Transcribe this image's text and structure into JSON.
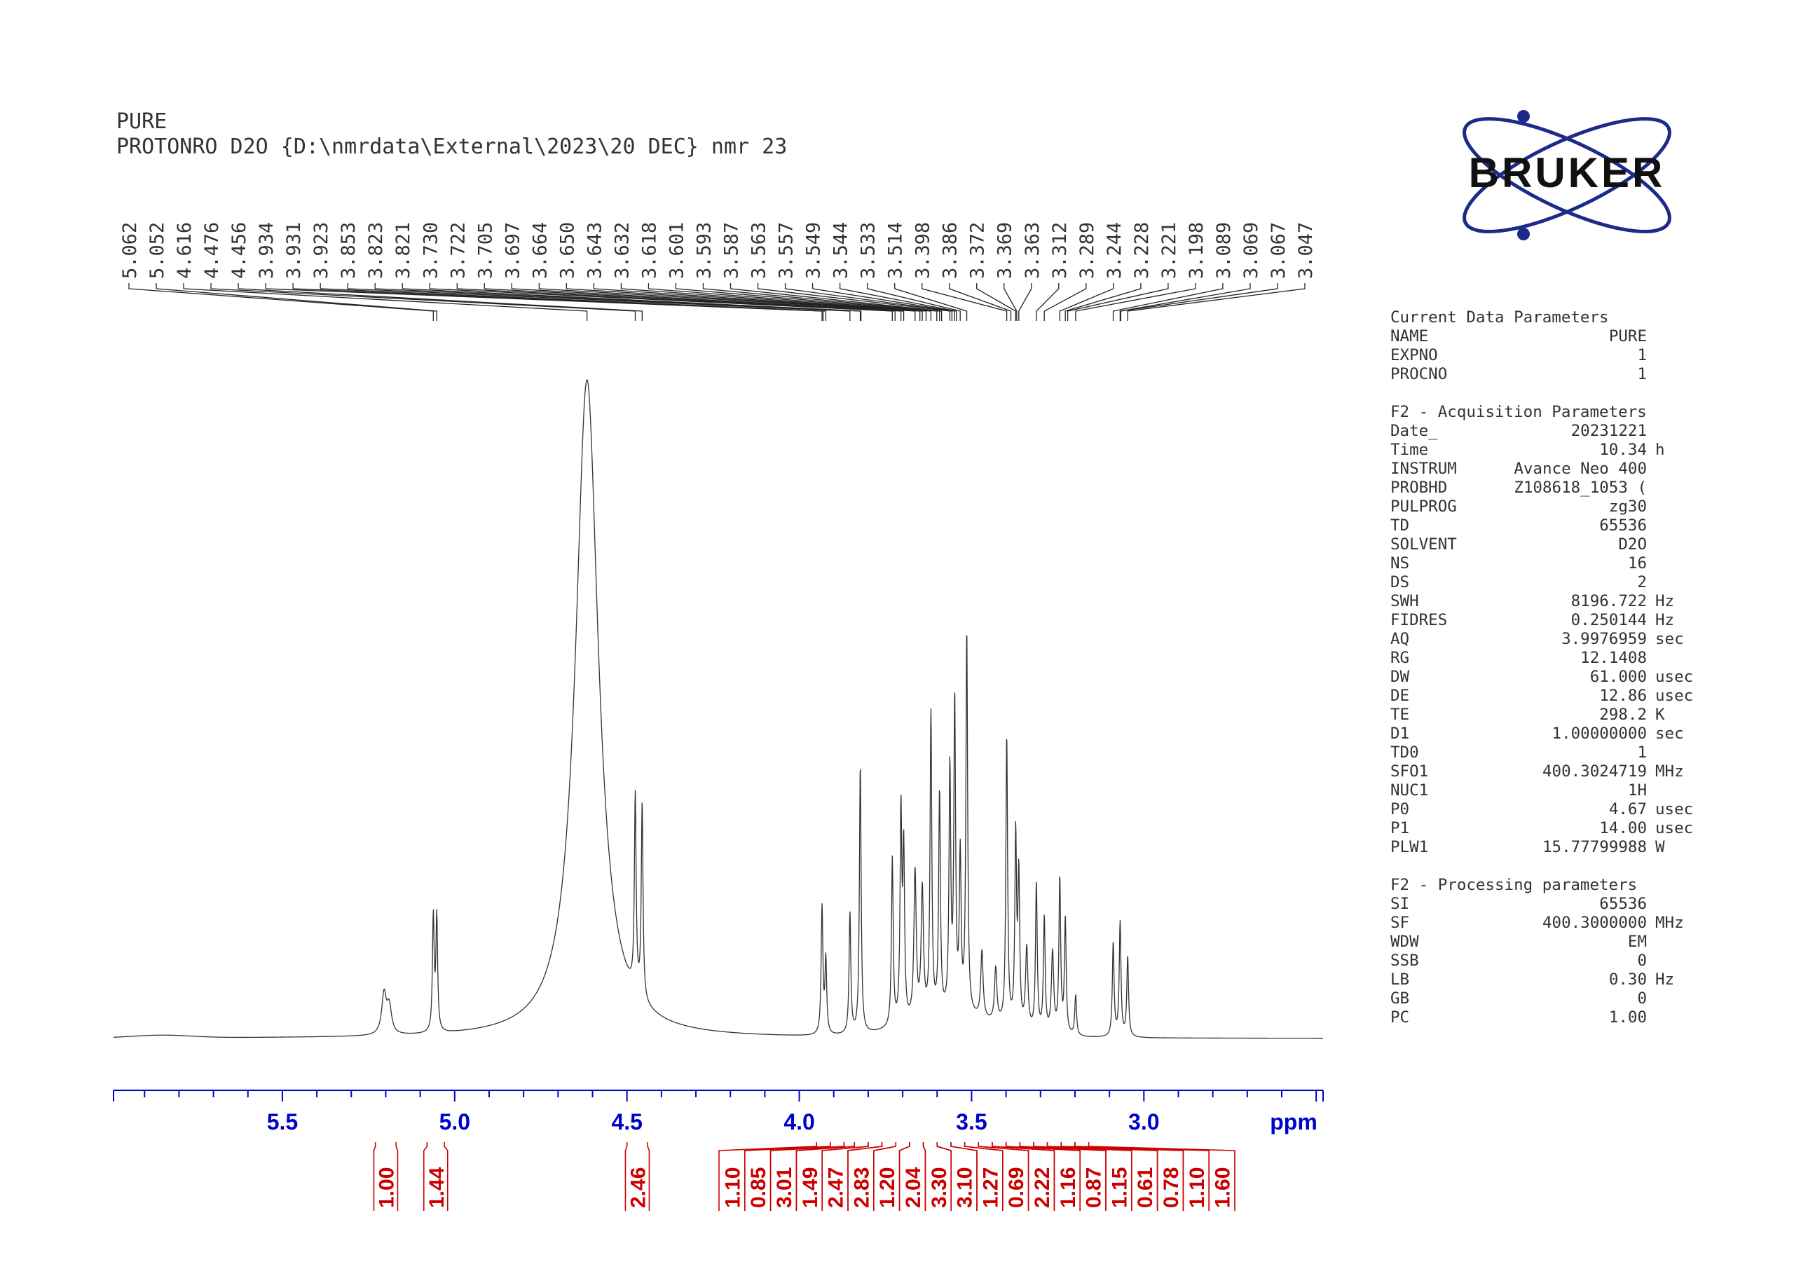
{
  "header": {
    "line1": "PURE",
    "line2": "PROTONRO D2O {D:\\nmrdata\\External\\2023\\20 DEC} nmr 23"
  },
  "logo": {
    "text": "BRUKER",
    "color": "#1c2a8a",
    "icon": "bruker-orbit-logo"
  },
  "colors": {
    "axis": "#0000cc",
    "integral": "#cc0000",
    "trace": "#333333"
  },
  "parameters": {
    "current": {
      "title": "Current Data Parameters",
      "rows": [
        {
          "name": "NAME",
          "value": "PURE",
          "unit": ""
        },
        {
          "name": "EXPNO",
          "value": "1",
          "unit": ""
        },
        {
          "name": "PROCNO",
          "value": "1",
          "unit": ""
        }
      ]
    },
    "acquisition": {
      "title": "F2 - Acquisition Parameters",
      "rows": [
        {
          "name": "Date_",
          "value": "20231221",
          "unit": ""
        },
        {
          "name": "Time",
          "value": "10.34",
          "unit": "h"
        },
        {
          "name": "INSTRUM",
          "value": "Avance Neo 400",
          "unit": ""
        },
        {
          "name": "PROBHD",
          "value": "Z108618_1053 (",
          "unit": ""
        },
        {
          "name": "PULPROG",
          "value": "zg30",
          "unit": ""
        },
        {
          "name": "TD",
          "value": "65536",
          "unit": ""
        },
        {
          "name": "SOLVENT",
          "value": "D2O",
          "unit": ""
        },
        {
          "name": "NS",
          "value": "16",
          "unit": ""
        },
        {
          "name": "DS",
          "value": "2",
          "unit": ""
        },
        {
          "name": "SWH",
          "value": "8196.722",
          "unit": "Hz"
        },
        {
          "name": "FIDRES",
          "value": "0.250144",
          "unit": "Hz"
        },
        {
          "name": "AQ",
          "value": "3.9976959",
          "unit": "sec"
        },
        {
          "name": "RG",
          "value": "12.1408",
          "unit": ""
        },
        {
          "name": "DW",
          "value": "61.000",
          "unit": "usec"
        },
        {
          "name": "DE",
          "value": "12.86",
          "unit": "usec"
        },
        {
          "name": "TE",
          "value": "298.2",
          "unit": "K"
        },
        {
          "name": "D1",
          "value": "1.00000000",
          "unit": "sec"
        },
        {
          "name": "TD0",
          "value": "1",
          "unit": ""
        },
        {
          "name": "SFO1",
          "value": "400.3024719",
          "unit": "MHz"
        },
        {
          "name": "NUC1",
          "value": "1H",
          "unit": ""
        },
        {
          "name": "P0",
          "value": "4.67",
          "unit": "usec"
        },
        {
          "name": "P1",
          "value": "14.00",
          "unit": "usec"
        },
        {
          "name": "PLW1",
          "value": "15.77799988",
          "unit": "W"
        }
      ]
    },
    "processing": {
      "title": "F2 - Processing parameters",
      "rows": [
        {
          "name": "SI",
          "value": "65536",
          "unit": ""
        },
        {
          "name": "SF",
          "value": "400.3000000",
          "unit": "MHz"
        },
        {
          "name": "WDW",
          "value": "EM",
          "unit": ""
        },
        {
          "name": "SSB",
          "value": "0",
          "unit": ""
        },
        {
          "name": "LB",
          "value": "0.30",
          "unit": "Hz"
        },
        {
          "name": "GB",
          "value": "0",
          "unit": ""
        },
        {
          "name": "PC",
          "value": "1.00",
          "unit": ""
        }
      ]
    }
  },
  "chart_data": {
    "type": "line",
    "xlabel": "ppm",
    "xlim": [
      5.99,
      2.48
    ],
    "x_reversed": true,
    "x_ticks": [
      "5.5",
      "5.0",
      "4.5",
      "4.0",
      "3.5",
      "3.0"
    ],
    "y_relative_max": 1.0,
    "baseline_level": 0.0,
    "peak_labels": [
      "5.062",
      "5.052",
      "4.616",
      "4.476",
      "4.456",
      "3.934",
      "3.931",
      "3.923",
      "3.853",
      "3.823",
      "3.821",
      "3.730",
      "3.722",
      "3.705",
      "3.697",
      "3.664",
      "3.650",
      "3.643",
      "3.632",
      "3.618",
      "3.601",
      "3.593",
      "3.587",
      "3.563",
      "3.557",
      "3.549",
      "3.544",
      "3.533",
      "3.514",
      "3.398",
      "3.386",
      "3.372",
      "3.369",
      "3.363",
      "3.312",
      "3.289",
      "3.244",
      "3.228",
      "3.221",
      "3.198",
      "3.089",
      "3.069",
      "3.067",
      "3.047"
    ],
    "peaks": [
      {
        "x": 5.205,
        "h": 0.06,
        "w": 0.008
      },
      {
        "x": 5.19,
        "h": 0.04,
        "w": 0.008
      },
      {
        "x": 5.062,
        "h": 0.17,
        "w": 0.003
      },
      {
        "x": 5.052,
        "h": 0.17,
        "w": 0.003
      },
      {
        "x": 4.616,
        "h": 0.98,
        "w": 0.04
      },
      {
        "x": 4.476,
        "h": 0.29,
        "w": 0.003
      },
      {
        "x": 4.456,
        "h": 0.29,
        "w": 0.003
      },
      {
        "x": 3.934,
        "h": 0.19,
        "w": 0.003
      },
      {
        "x": 3.923,
        "h": 0.11,
        "w": 0.003
      },
      {
        "x": 3.853,
        "h": 0.18,
        "w": 0.003
      },
      {
        "x": 3.823,
        "h": 0.4,
        "w": 0.003
      },
      {
        "x": 3.73,
        "h": 0.25,
        "w": 0.003
      },
      {
        "x": 3.705,
        "h": 0.31,
        "w": 0.003
      },
      {
        "x": 3.697,
        "h": 0.25,
        "w": 0.003
      },
      {
        "x": 3.664,
        "h": 0.22,
        "w": 0.004
      },
      {
        "x": 3.643,
        "h": 0.19,
        "w": 0.004
      },
      {
        "x": 3.618,
        "h": 0.45,
        "w": 0.003
      },
      {
        "x": 3.593,
        "h": 0.33,
        "w": 0.003
      },
      {
        "x": 3.563,
        "h": 0.36,
        "w": 0.003
      },
      {
        "x": 3.549,
        "h": 0.46,
        "w": 0.003
      },
      {
        "x": 3.533,
        "h": 0.23,
        "w": 0.003
      },
      {
        "x": 3.514,
        "h": 0.57,
        "w": 0.003
      },
      {
        "x": 3.47,
        "h": 0.1,
        "w": 0.004
      },
      {
        "x": 3.43,
        "h": 0.08,
        "w": 0.004
      },
      {
        "x": 3.398,
        "h": 0.43,
        "w": 0.003
      },
      {
        "x": 3.372,
        "h": 0.28,
        "w": 0.003
      },
      {
        "x": 3.363,
        "h": 0.22,
        "w": 0.003
      },
      {
        "x": 3.34,
        "h": 0.12,
        "w": 0.004
      },
      {
        "x": 3.312,
        "h": 0.22,
        "w": 0.003
      },
      {
        "x": 3.289,
        "h": 0.17,
        "w": 0.003
      },
      {
        "x": 3.265,
        "h": 0.12,
        "w": 0.004
      },
      {
        "x": 3.244,
        "h": 0.23,
        "w": 0.003
      },
      {
        "x": 3.228,
        "h": 0.17,
        "w": 0.003
      },
      {
        "x": 3.198,
        "h": 0.06,
        "w": 0.003
      },
      {
        "x": 3.089,
        "h": 0.14,
        "w": 0.003
      },
      {
        "x": 3.069,
        "h": 0.17,
        "w": 0.003
      },
      {
        "x": 3.047,
        "h": 0.12,
        "w": 0.003
      }
    ],
    "integrals": [
      {
        "from": 5.23,
        "to": 5.17,
        "value": "1.00"
      },
      {
        "from": 5.08,
        "to": 5.03,
        "value": "1.44"
      },
      {
        "from": 4.5,
        "to": 4.44,
        "value": "2.46"
      },
      {
        "from": 3.95,
        "to": 3.91,
        "value": "1.10"
      },
      {
        "from": 3.91,
        "to": 3.87,
        "value": "0.85"
      },
      {
        "from": 3.87,
        "to": 3.84,
        "value": "3.01"
      },
      {
        "from": 3.84,
        "to": 3.8,
        "value": "1.49"
      },
      {
        "from": 3.8,
        "to": 3.76,
        "value": "2.47"
      },
      {
        "from": 3.76,
        "to": 3.72,
        "value": "2.83"
      },
      {
        "from": 3.72,
        "to": 3.68,
        "value": "1.20"
      },
      {
        "from": 3.68,
        "to": 3.64,
        "value": "2.04"
      },
      {
        "from": 3.64,
        "to": 3.6,
        "value": "3.30"
      },
      {
        "from": 3.6,
        "to": 3.56,
        "value": "3.10"
      },
      {
        "from": 3.56,
        "to": 3.52,
        "value": "1.27"
      },
      {
        "from": 3.52,
        "to": 3.48,
        "value": "0.69"
      },
      {
        "from": 3.48,
        "to": 3.44,
        "value": "2.22"
      },
      {
        "from": 3.44,
        "to": 3.4,
        "value": "1.16"
      },
      {
        "from": 3.4,
        "to": 3.36,
        "value": "0.87"
      },
      {
        "from": 3.36,
        "to": 3.32,
        "value": "1.15"
      },
      {
        "from": 3.32,
        "to": 3.28,
        "value": "0.61"
      },
      {
        "from": 3.28,
        "to": 3.24,
        "value": "0.78"
      },
      {
        "from": 3.24,
        "to": 3.2,
        "value": "1.10"
      },
      {
        "from": 3.2,
        "to": 3.16,
        "value": "1.60"
      }
    ]
  }
}
